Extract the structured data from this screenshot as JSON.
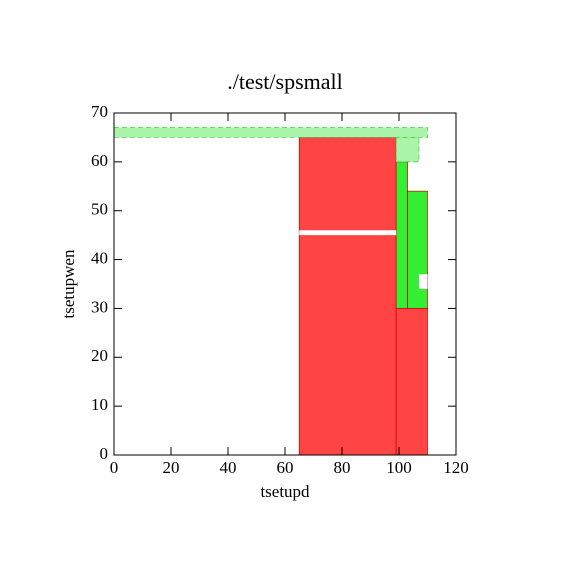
{
  "chart_data": {
    "type": "region",
    "title": "./test/spsmall",
    "x_label": "tsetupd",
    "y_label": "tsetupwen",
    "xlim": [
      0,
      120
    ],
    "ylim": [
      0,
      70
    ],
    "xticks": [
      0,
      20,
      40,
      60,
      80,
      100,
      120
    ],
    "yticks": [
      0,
      10,
      20,
      30,
      40,
      50,
      60,
      70
    ],
    "regions": [
      {
        "color": "#ff4444",
        "x": [
          65,
          99
        ],
        "y": [
          0,
          65
        ]
      },
      {
        "color": "#ff4444",
        "x": [
          99,
          110
        ],
        "y": [
          0,
          30
        ]
      },
      {
        "color": "#33ee33",
        "x": [
          99,
          103
        ],
        "y": [
          30,
          60
        ]
      },
      {
        "color": "#33ee33",
        "x": [
          103,
          110
        ],
        "y": [
          30,
          54
        ]
      },
      {
        "color": "#ffffff",
        "x": [
          107,
          110
        ],
        "y": [
          34,
          37
        ]
      },
      {
        "color": "#ffffff",
        "x": [
          65,
          99
        ],
        "y": [
          45,
          46
        ]
      },
      {
        "color": "#aaf5aa",
        "x": [
          99,
          107
        ],
        "y": [
          60,
          65
        ]
      },
      {
        "color": "#aaf5aa",
        "x": [
          0,
          110
        ],
        "y": [
          65,
          67
        ]
      }
    ]
  }
}
